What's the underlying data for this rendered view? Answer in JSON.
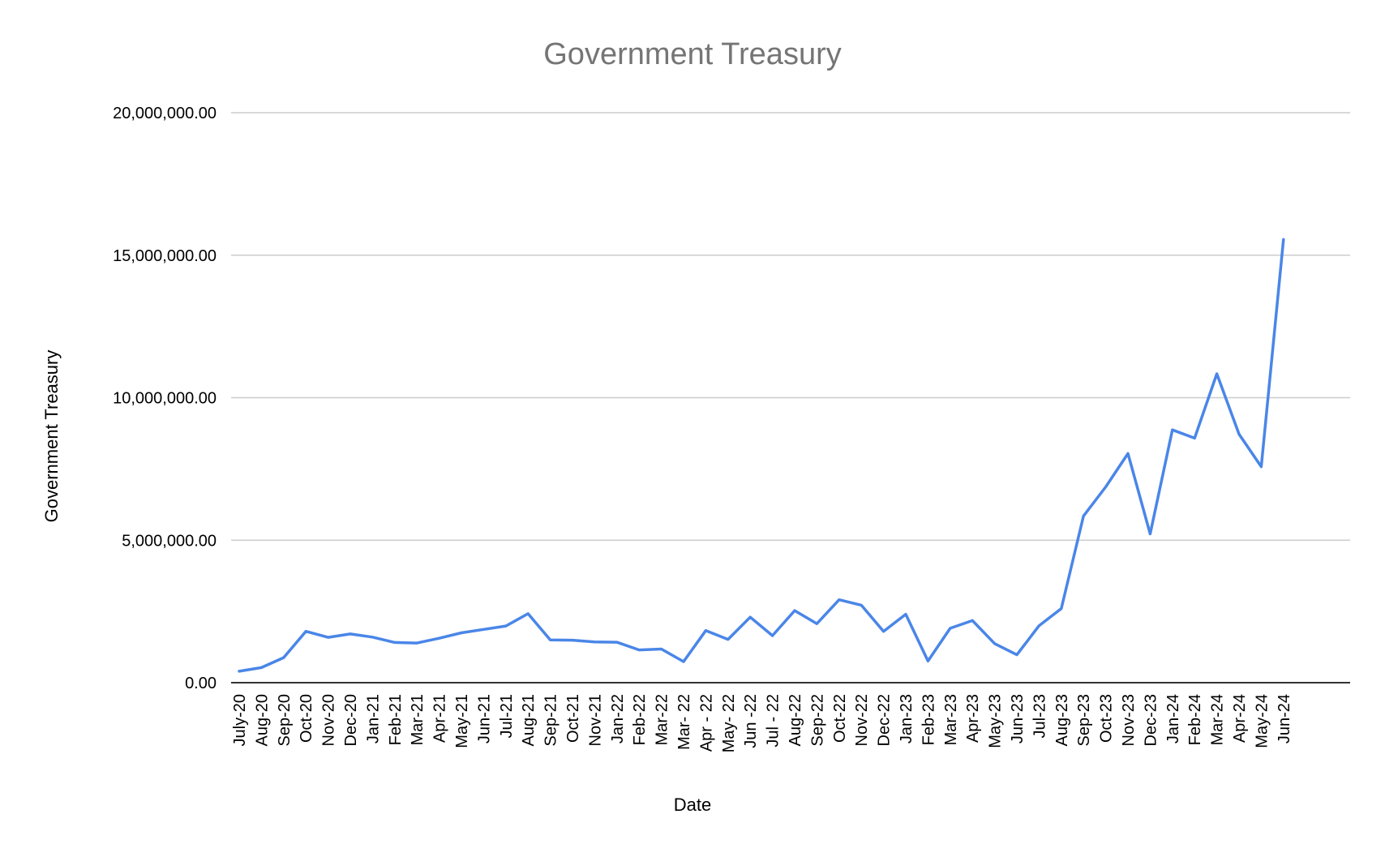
{
  "chart_data": {
    "type": "line",
    "title": "Government Treasury",
    "xlabel": "Date",
    "ylabel": "Government Treasury",
    "ylim": [
      0,
      20000000
    ],
    "yticks": [
      "0.00",
      "5,000,000.00",
      "10,000,000.00",
      "15,000,000.00",
      "20,000,000.00"
    ],
    "ytick_values": [
      0,
      5000000,
      10000000,
      15000000,
      20000000
    ],
    "grid": true,
    "line_color": "#4a86e8",
    "categories": [
      "July-20",
      "Aug-20",
      "Sep-20",
      "Oct-20",
      "Nov-20",
      "Dec-20",
      "Jan-21",
      "Feb-21",
      "Mar-21",
      "Apr-21",
      "May-21",
      "Jun-21",
      "Jul-21",
      "Aug-21",
      "Sep-21",
      "Oct-21",
      "Nov-21",
      "Jan-22",
      "Feb-22",
      "Mar-22",
      "Mar- 22",
      "Apr - 22",
      "May- 22",
      "Jun -22",
      "Jul - 22",
      "Aug-22",
      "Sep-22",
      "Oct-22",
      "Nov-22",
      "Dec-22",
      "Jan-23",
      "Feb-23",
      "Mar-23",
      "Apr-23",
      "May-23",
      "Jun-23",
      "Jul-23",
      "Aug-23",
      "Sep-23",
      "Oct-23",
      "Nov-23",
      "Dec-23",
      "Jan-24",
      "Feb-24",
      "Mar-24",
      "Apr-24",
      "May-24",
      "Jun-24"
    ],
    "series": [
      {
        "values": [
          400000,
          530000,
          880000,
          1800000,
          1590000,
          1710000,
          1600000,
          1410000,
          1390000,
          1560000,
          1750000,
          1870000,
          1990000,
          2420000,
          1500000,
          1490000,
          1430000,
          1420000,
          1150000,
          1180000,
          740000,
          1830000,
          1520000,
          2300000,
          1650000,
          2530000,
          2070000,
          2910000,
          2720000,
          1800000,
          2400000,
          760000,
          1910000,
          2180000,
          1370000,
          980000,
          2000000,
          2600000,
          5850000,
          6870000,
          8040000,
          5220000,
          8870000,
          8580000,
          10840000,
          8720000,
          7580000,
          15550000
        ]
      }
    ]
  }
}
